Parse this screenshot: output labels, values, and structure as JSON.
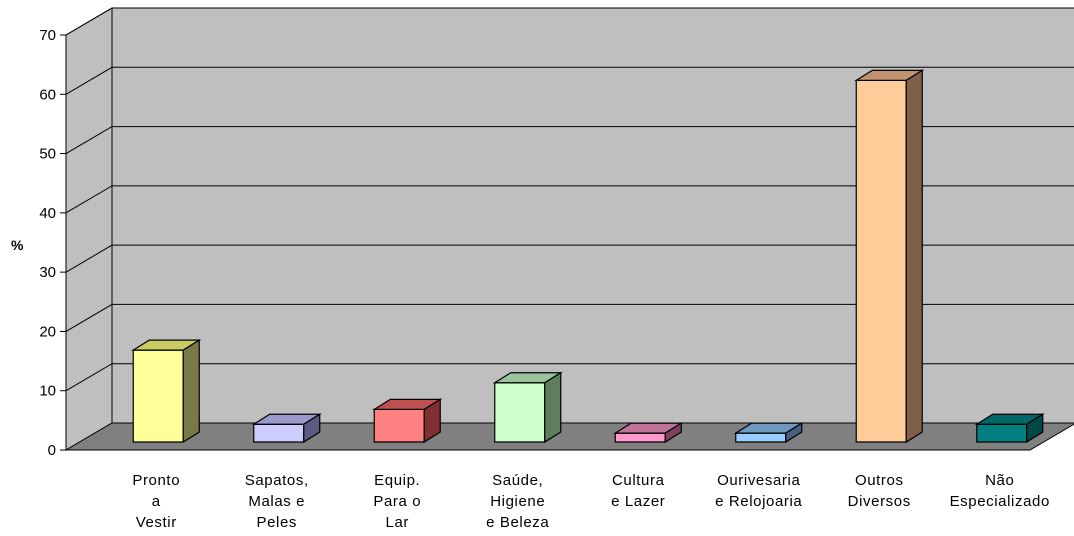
{
  "chart_data": {
    "type": "bar",
    "title": "",
    "xlabel": "",
    "ylabel": "%",
    "ylim": [
      0,
      70
    ],
    "yticks": [
      0,
      10,
      20,
      30,
      40,
      50,
      60,
      70
    ],
    "grid": true,
    "categories": [
      [
        "Pronto",
        "a",
        "Vestir"
      ],
      [
        "Sapatos,",
        "Malas e",
        "Peles"
      ],
      [
        "Equip.",
        "Para o",
        "Lar"
      ],
      [
        "Saúde,",
        "Higiene",
        "e Beleza"
      ],
      [
        "Cultura",
        "e Lazer"
      ],
      [
        "Ourivesaria",
        "e Relojoaria"
      ],
      [
        "Outros",
        "Diversos"
      ],
      [
        "Não",
        "Especializado"
      ]
    ],
    "values": [
      15.5,
      3,
      5.5,
      10,
      1.5,
      1.5,
      61,
      3
    ],
    "colors": [
      [
        "#FFFF99",
        "#CCCC66",
        "#7A7A48"
      ],
      [
        "#CCCCFF",
        "#9999CC",
        "#5C5C80"
      ],
      [
        "#FF8080",
        "#C05050",
        "#803030"
      ],
      [
        "#CCFFCC",
        "#99C399",
        "#5E7E5E"
      ],
      [
        "#FF99CC",
        "#C07399",
        "#80405E"
      ],
      [
        "#99CCFF",
        "#7099C0",
        "#46607E"
      ],
      [
        "#FFCC99",
        "#C09270",
        "#806048"
      ],
      [
        "#008080",
        "#006666",
        "#004848"
      ]
    ],
    "wall_color": "#BFBFBF",
    "floor_color": "#808080"
  }
}
